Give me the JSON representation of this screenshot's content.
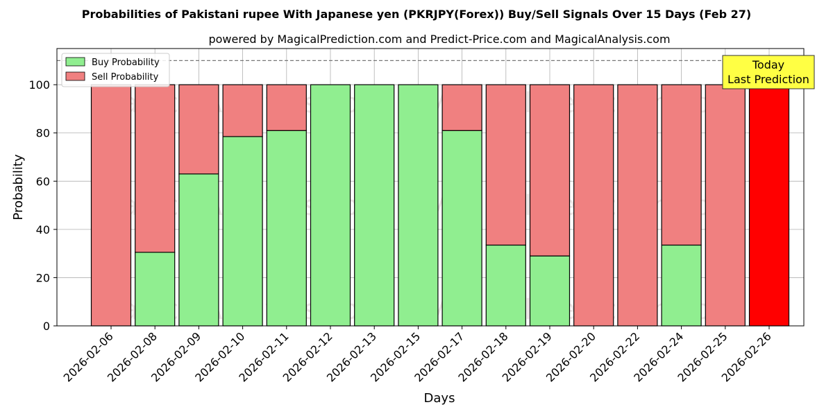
{
  "chart_data": {
    "type": "bar",
    "stacked": true,
    "title": "Probabilities of Pakistani rupee With Japanese yen (PKRJPY(Forex)) Buy/Sell Signals Over 15 Days (Feb 27)",
    "subtitle": "powered by MagicalPrediction.com and Predict-Price.com and MagicalAnalysis.com",
    "xlabel": "Days",
    "ylabel": "Probability",
    "ylim": [
      0,
      115
    ],
    "yticks": [
      0,
      20,
      40,
      60,
      80,
      100
    ],
    "reference_line": 110,
    "grid": true,
    "legend_position": "top-left",
    "categories": [
      "2026-02-06",
      "2026-02-08",
      "2026-02-09",
      "2026-02-10",
      "2026-02-11",
      "2026-02-12",
      "2026-02-13",
      "2026-02-15",
      "2026-02-17",
      "2026-02-18",
      "2026-02-19",
      "2026-02-20",
      "2026-02-22",
      "2026-02-24",
      "2026-02-25",
      "2026-02-26"
    ],
    "series": [
      {
        "name": "Buy Probability",
        "color": "#90ee90",
        "values": [
          0,
          30.5,
          63,
          78.5,
          81,
          100,
          100,
          100,
          81,
          33.5,
          29,
          0,
          0,
          33.5,
          0,
          0
        ]
      },
      {
        "name": "Sell Probability",
        "color": "#f08080",
        "values": [
          100,
          69.5,
          37,
          21.5,
          19,
          0,
          0,
          0,
          19,
          66.5,
          71,
          100,
          100,
          66.5,
          100,
          100
        ]
      }
    ],
    "highlight": {
      "index": 15,
      "color": "#ff0000"
    },
    "annotation": {
      "lines": [
        "Today",
        "Last Prediction"
      ],
      "color": "#ffff44"
    },
    "watermarks": [
      "MagicalAnalysis.com",
      "MagicalPrediction.com"
    ]
  }
}
